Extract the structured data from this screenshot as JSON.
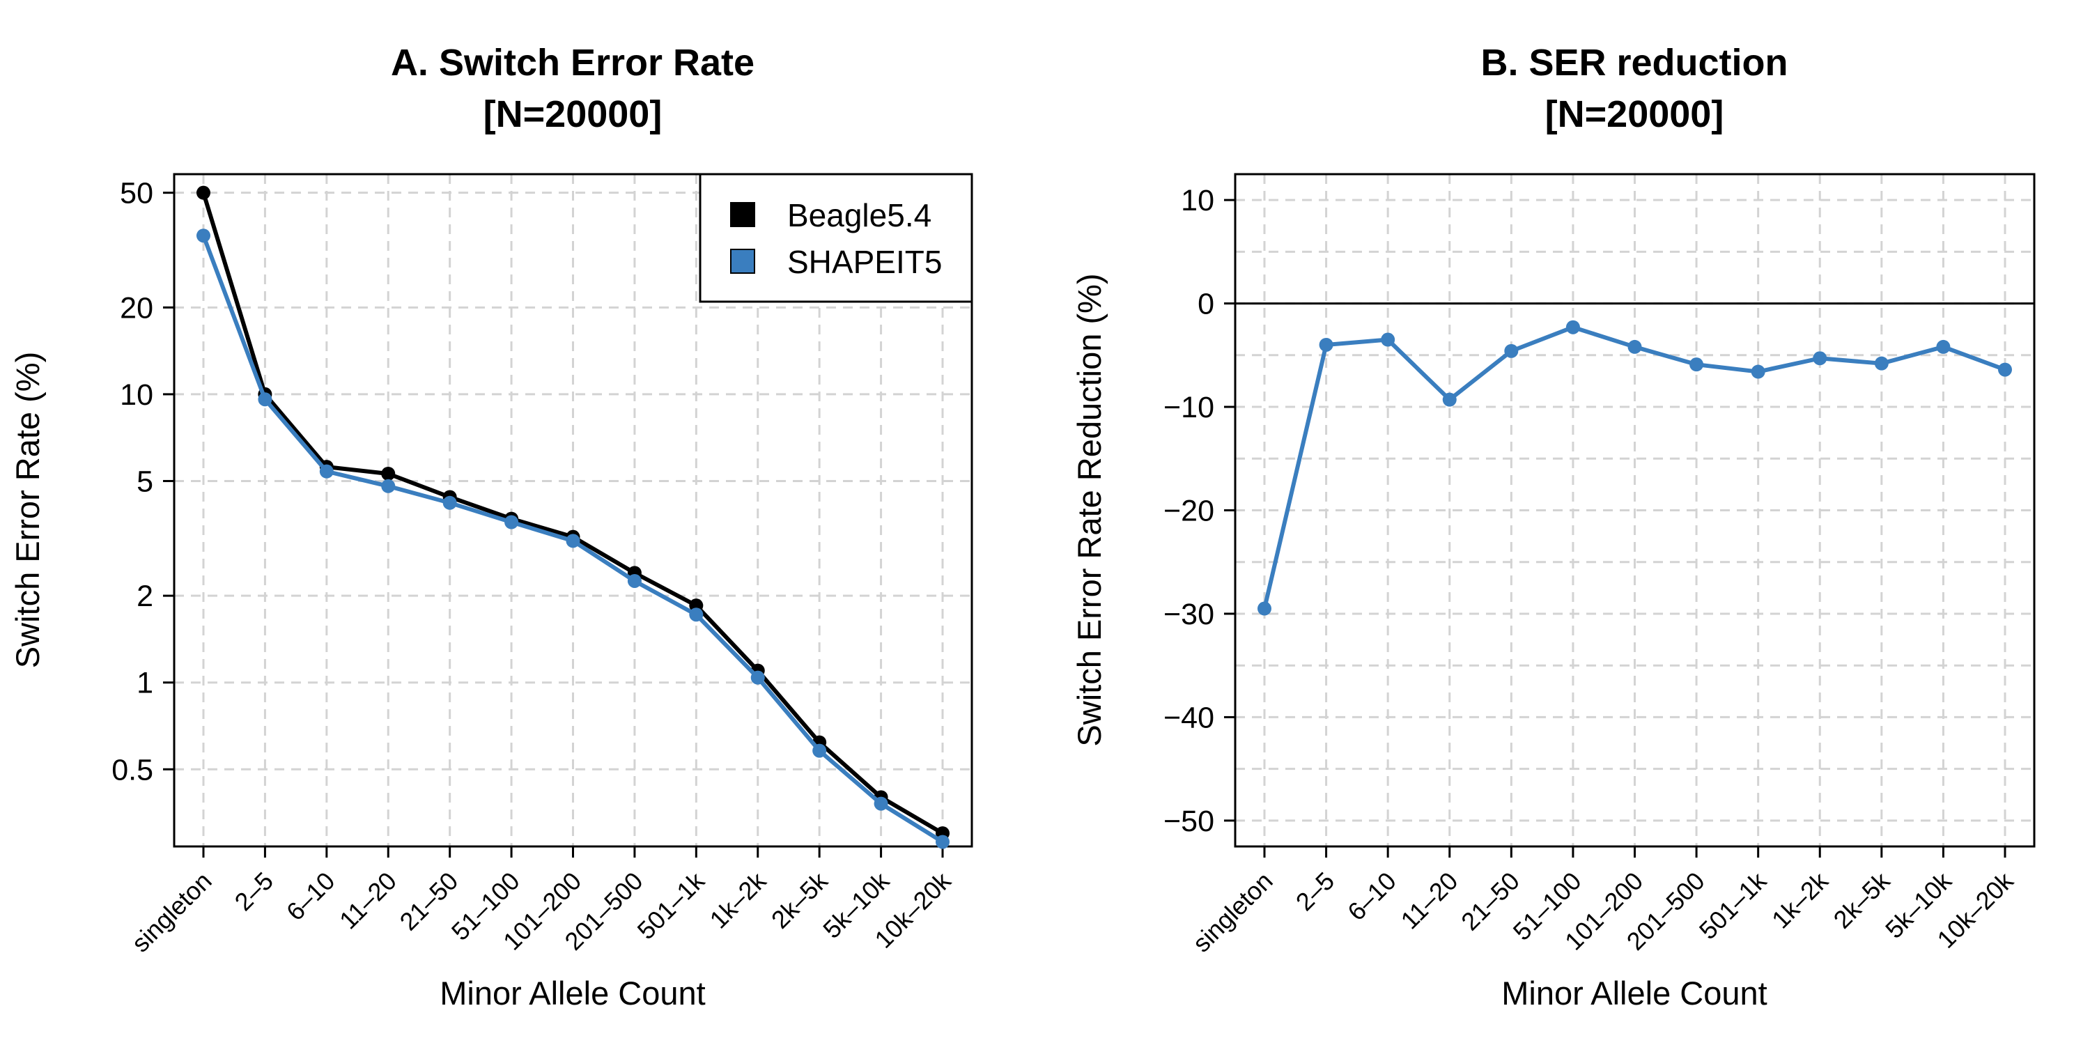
{
  "chart_data": [
    {
      "type": "line",
      "title": "A. Switch Error Rate",
      "subtitle": "[N=20000]",
      "xlabel": "Minor Allele Count",
      "ylabel": "Switch Error Rate (%)",
      "yscale": "log",
      "ylim": [
        0.27,
        58
      ],
      "yticks": [
        50,
        20,
        10,
        5,
        2,
        1,
        0.5
      ],
      "ytick_labels": [
        "50",
        "20",
        "10",
        "5",
        "2",
        "1",
        "0.5"
      ],
      "grid": true,
      "legend": "top-right",
      "categories": [
        "singleton",
        "2–5",
        "6–10",
        "11–20",
        "21–50",
        "51–100",
        "101–200",
        "201–500",
        "501–1k",
        "1k–2k",
        "2k–5k",
        "5k–10k",
        "10k–20k"
      ],
      "series": [
        {
          "name": "Beagle5.4",
          "color": "#000000",
          "values": [
            50,
            10.0,
            5.6,
            5.3,
            4.4,
            3.7,
            3.2,
            2.4,
            1.85,
            1.1,
            0.62,
            0.4,
            0.3
          ]
        },
        {
          "name": "SHAPEIT5",
          "color": "#3a7ebf",
          "values": [
            35.5,
            9.6,
            5.4,
            4.8,
            4.2,
            3.6,
            3.1,
            2.25,
            1.72,
            1.04,
            0.58,
            0.38,
            0.28
          ]
        }
      ]
    },
    {
      "type": "line",
      "title": "B. SER reduction",
      "subtitle": "[N=20000]",
      "xlabel": "Minor Allele Count",
      "ylabel": "Switch Error Rate Reduction (%)",
      "ylim": [
        -52.5,
        12.5
      ],
      "yticks": [
        10,
        0,
        -10,
        -20,
        -30,
        -40,
        -50
      ],
      "ytick_labels": [
        "10",
        "0",
        "−10",
        "−20",
        "−30",
        "−40",
        "−50"
      ],
      "grid": true,
      "categories": [
        "singleton",
        "2–5",
        "6–10",
        "11–20",
        "21–50",
        "51–100",
        "101–200",
        "201–500",
        "501–1k",
        "1k–2k",
        "2k–5k",
        "5k–10k",
        "10k–20k"
      ],
      "series": [
        {
          "color": "#3a7ebf",
          "values": [
            -29.5,
            -4.0,
            -3.5,
            -9.3,
            -4.6,
            -2.3,
            -4.2,
            -5.9,
            -6.6,
            -5.3,
            -5.8,
            -4.2,
            -6.4
          ]
        }
      ]
    }
  ]
}
